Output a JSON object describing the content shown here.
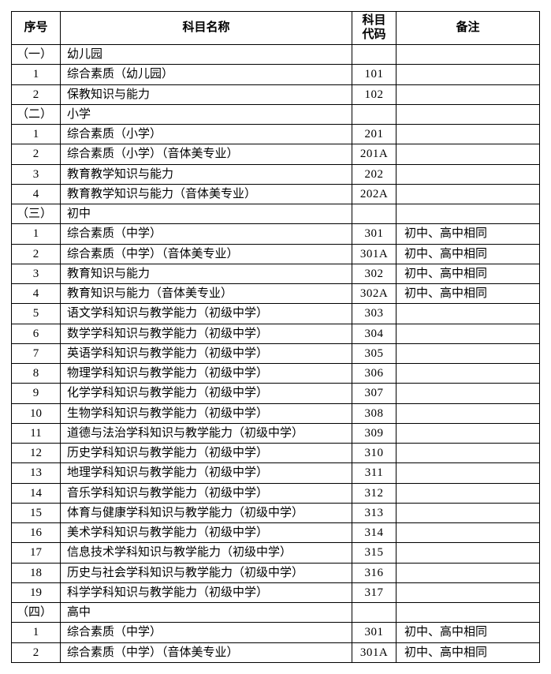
{
  "headers": {
    "seq": "序号",
    "name": "科目名称",
    "code": "科目代码",
    "remark": "备注"
  },
  "rows": [
    {
      "type": "section",
      "seq": "（一）",
      "name": "幼儿园",
      "code": "",
      "remark": ""
    },
    {
      "type": "data",
      "seq": "1",
      "name": "综合素质（幼儿园）",
      "code": "101",
      "remark": ""
    },
    {
      "type": "data",
      "seq": "2",
      "name": "保教知识与能力",
      "code": "102",
      "remark": ""
    },
    {
      "type": "section",
      "seq": "（二）",
      "name": "小学",
      "code": "",
      "remark": ""
    },
    {
      "type": "data",
      "seq": "1",
      "name": "综合素质（小学）",
      "code": "201",
      "remark": ""
    },
    {
      "type": "data",
      "seq": "2",
      "name": "综合素质（小学）（音体美专业）",
      "code": "201A",
      "remark": ""
    },
    {
      "type": "data",
      "seq": "3",
      "name": "教育教学知识与能力",
      "code": "202",
      "remark": ""
    },
    {
      "type": "data",
      "seq": "4",
      "name": "教育教学知识与能力（音体美专业）",
      "code": "202A",
      "remark": ""
    },
    {
      "type": "section",
      "seq": "（三）",
      "name": "初中",
      "code": "",
      "remark": ""
    },
    {
      "type": "data",
      "seq": "1",
      "name": "综合素质（中学）",
      "code": "301",
      "remark": "初中、高中相同"
    },
    {
      "type": "data",
      "seq": "2",
      "name": "综合素质（中学）（音体美专业）",
      "code": "301A",
      "remark": "初中、高中相同"
    },
    {
      "type": "data",
      "seq": "3",
      "name": "教育知识与能力",
      "code": "302",
      "remark": "初中、高中相同"
    },
    {
      "type": "data",
      "seq": "4",
      "name": "教育知识与能力（音体美专业）",
      "code": "302A",
      "remark": "初中、高中相同"
    },
    {
      "type": "data",
      "seq": "5",
      "name": "语文学科知识与教学能力（初级中学）",
      "code": "303",
      "remark": ""
    },
    {
      "type": "data",
      "seq": "6",
      "name": "数学学科知识与教学能力（初级中学）",
      "code": "304",
      "remark": ""
    },
    {
      "type": "data",
      "seq": "7",
      "name": "英语学科知识与教学能力（初级中学）",
      "code": "305",
      "remark": ""
    },
    {
      "type": "data",
      "seq": "8",
      "name": "物理学科知识与教学能力（初级中学）",
      "code": "306",
      "remark": ""
    },
    {
      "type": "data",
      "seq": "9",
      "name": "化学学科知识与教学能力（初级中学）",
      "code": "307",
      "remark": ""
    },
    {
      "type": "data",
      "seq": "10",
      "name": "生物学科知识与教学能力（初级中学）",
      "code": "308",
      "remark": ""
    },
    {
      "type": "data",
      "seq": "11",
      "name": "道德与法治学科知识与教学能力（初级中学）",
      "code": "309",
      "remark": ""
    },
    {
      "type": "data",
      "seq": "12",
      "name": "历史学科知识与教学能力（初级中学）",
      "code": "310",
      "remark": ""
    },
    {
      "type": "data",
      "seq": "13",
      "name": "地理学科知识与教学能力（初级中学）",
      "code": "311",
      "remark": ""
    },
    {
      "type": "data",
      "seq": "14",
      "name": "音乐学科知识与教学能力（初级中学）",
      "code": "312",
      "remark": ""
    },
    {
      "type": "data",
      "seq": "15",
      "name": "体育与健康学科知识与教学能力（初级中学）",
      "code": "313",
      "remark": ""
    },
    {
      "type": "data",
      "seq": "16",
      "name": "美术学科知识与教学能力（初级中学）",
      "code": "314",
      "remark": ""
    },
    {
      "type": "data",
      "seq": "17",
      "name": "信息技术学科知识与教学能力（初级中学）",
      "code": "315",
      "remark": ""
    },
    {
      "type": "data",
      "seq": "18",
      "name": "历史与社会学科知识与教学能力（初级中学）",
      "code": "316",
      "remark": ""
    },
    {
      "type": "data",
      "seq": "19",
      "name": "科学学科知识与教学能力（初级中学）",
      "code": "317",
      "remark": ""
    },
    {
      "type": "section",
      "seq": "（四）",
      "name": "高中",
      "code": "",
      "remark": ""
    },
    {
      "type": "data",
      "seq": "1",
      "name": "综合素质（中学）",
      "code": "301",
      "remark": "初中、高中相同"
    },
    {
      "type": "data",
      "seq": "2",
      "name": "综合素质（中学）（音体美专业）",
      "code": "301A",
      "remark": "初中、高中相同"
    }
  ]
}
